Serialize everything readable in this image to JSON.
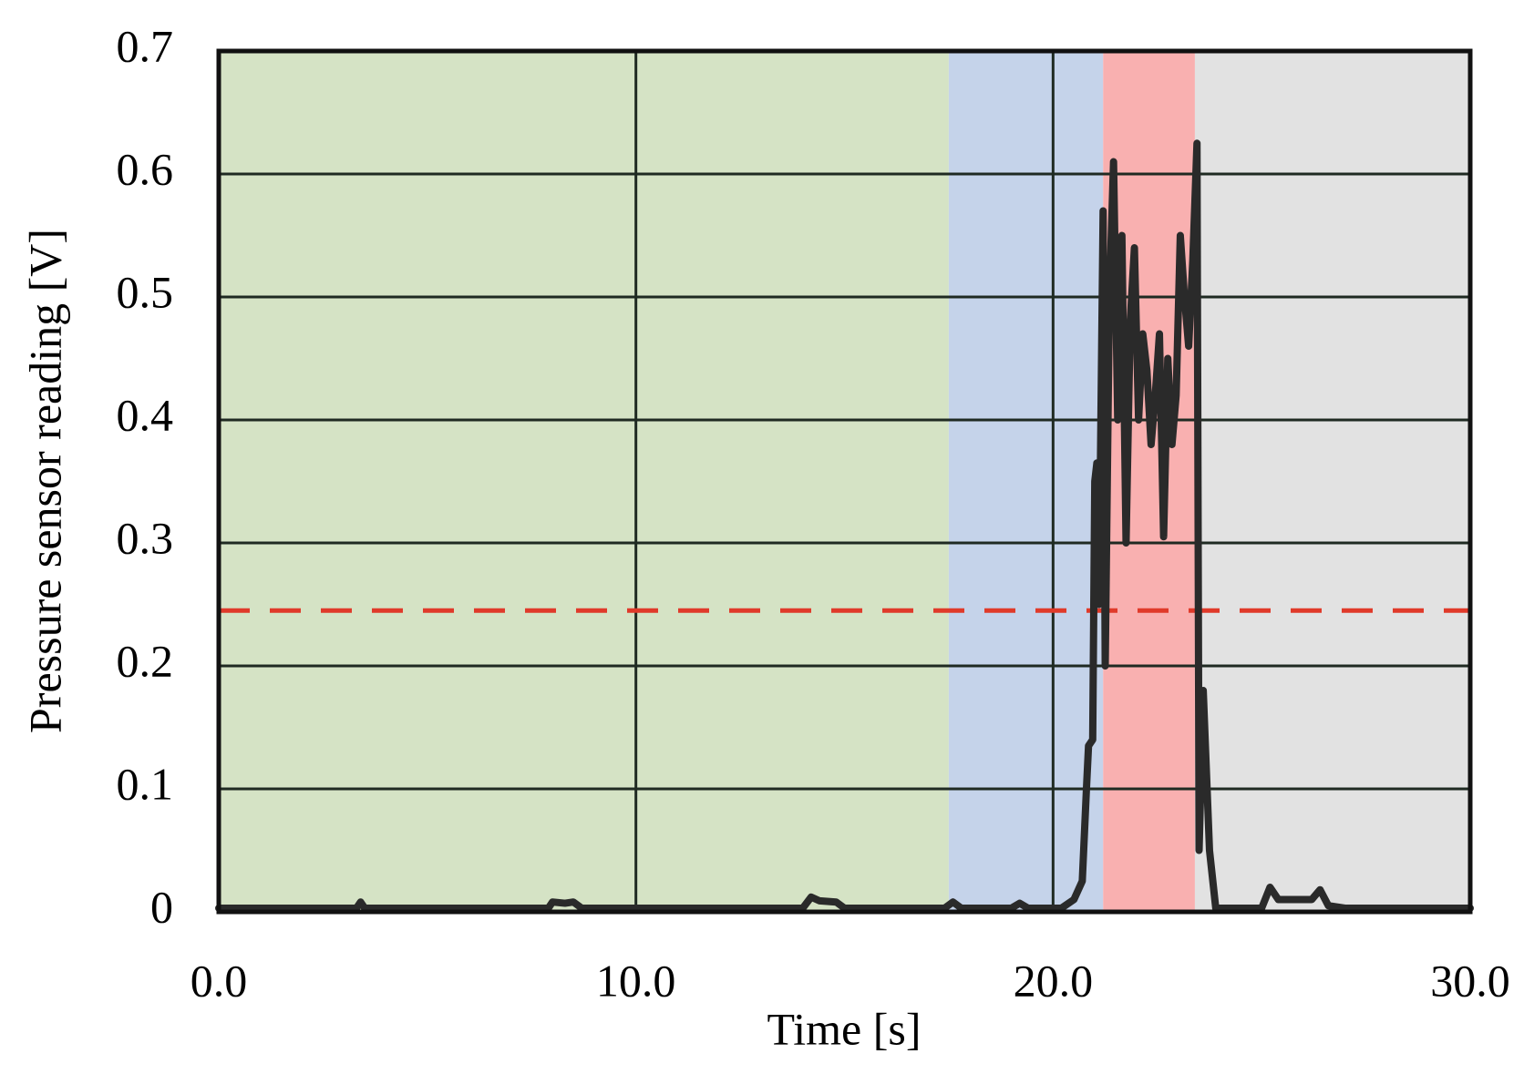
{
  "chart_data": {
    "type": "line",
    "x_label": "Time [s]",
    "y_label": "Pressure sensor reading [V]",
    "xlim": [
      0,
      30
    ],
    "ylim": [
      0,
      0.7
    ],
    "xticks": [
      {
        "value": 0,
        "label": "0.0"
      },
      {
        "value": 10,
        "label": "10.0"
      },
      {
        "value": 20,
        "label": "20.0"
      },
      {
        "value": 30,
        "label": "30.0"
      }
    ],
    "yticks": [
      0,
      0.1,
      0.2,
      0.3,
      0.4,
      0.5,
      0.6,
      0.7
    ],
    "grid": true,
    "bands": [
      {
        "start": 0,
        "end": 17.5,
        "color": "#d5e3c5"
      },
      {
        "start": 17.5,
        "end": 21.2,
        "color": "#c5d3ea"
      },
      {
        "start": 21.2,
        "end": 23.4,
        "color": "#f9b0b0"
      },
      {
        "start": 23.4,
        "end": 30,
        "color": "#e2e2e2"
      }
    ],
    "threshold": {
      "value": 0.245,
      "color": "#e03a2a"
    },
    "series": [
      {
        "color": "#2a2a2a",
        "x": [
          0,
          3.3,
          3.4,
          3.5,
          7.9,
          8.0,
          8.3,
          8.5,
          8.7,
          14.0,
          14.2,
          14.4,
          14.8,
          15.0,
          17.4,
          17.6,
          17.8,
          19.0,
          19.2,
          19.4,
          20.2,
          20.5,
          20.7,
          20.8,
          20.85,
          20.95,
          21.0,
          21.05,
          21.1,
          21.2,
          21.25,
          21.35,
          21.45,
          21.55,
          21.65,
          21.75,
          21.85,
          21.95,
          22.05,
          22.15,
          22.25,
          22.35,
          22.45,
          22.55,
          22.65,
          22.75,
          22.85,
          22.95,
          23.05,
          23.15,
          23.25,
          23.35,
          23.45,
          23.5,
          23.6,
          23.75,
          23.9,
          25.0,
          25.2,
          25.4,
          26.2,
          26.4,
          26.6,
          27,
          30
        ],
        "values": [
          0.003,
          0.003,
          0.008,
          0.003,
          0.003,
          0.008,
          0.007,
          0.008,
          0.003,
          0.003,
          0.012,
          0.009,
          0.008,
          0.003,
          0.003,
          0.008,
          0.003,
          0.003,
          0.007,
          0.003,
          0.003,
          0.01,
          0.025,
          0.1,
          0.135,
          0.14,
          0.35,
          0.365,
          0.25,
          0.57,
          0.2,
          0.5,
          0.61,
          0.4,
          0.55,
          0.3,
          0.48,
          0.54,
          0.4,
          0.47,
          0.44,
          0.38,
          0.42,
          0.47,
          0.305,
          0.45,
          0.38,
          0.42,
          0.55,
          0.5,
          0.46,
          0.53,
          0.625,
          0.05,
          0.18,
          0.05,
          0.003,
          0.003,
          0.02,
          0.01,
          0.01,
          0.018,
          0.005,
          0.003,
          0.003
        ]
      }
    ]
  }
}
